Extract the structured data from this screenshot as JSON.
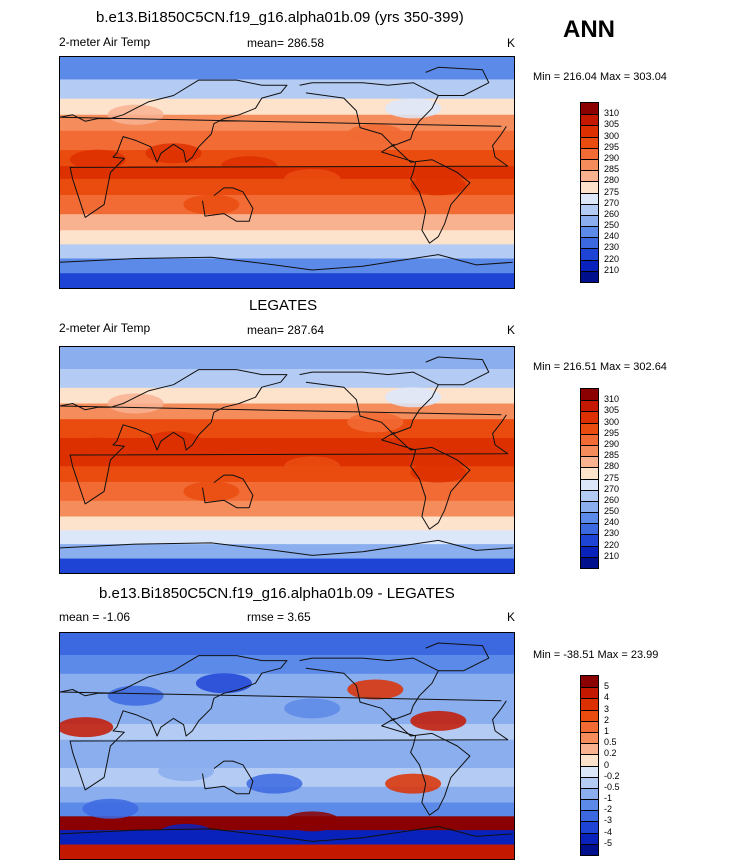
{
  "season": "ANN",
  "panels": [
    {
      "id": "model",
      "title": "b.e13.Bi1850C5CN.f19_g16.alpha01b.09 (yrs 350-399)",
      "left_label": "2-meter Air Temp",
      "center_label": "mean= 286.58",
      "units": "K",
      "minmax": "Min = 216.04 Max = 303.04"
    },
    {
      "id": "obs",
      "title": "LEGATES",
      "left_label": "2-meter Air Temp",
      "center_label": "mean= 287.64",
      "units": "K",
      "minmax": "Min = 216.51 Max = 302.64"
    },
    {
      "id": "diff",
      "title": "b.e13.Bi1850C5CN.f19_g16.alpha01b.09 - LEGATES",
      "left_label": "mean =  -1.06",
      "center_label": "rmse =   3.65",
      "units": "K",
      "minmax": "Min = -38.51 Max =  23.99"
    }
  ],
  "colorbars": {
    "temperature": {
      "labels": [
        "310",
        "305",
        "300",
        "295",
        "290",
        "285",
        "280",
        "275",
        "270",
        "260",
        "250",
        "240",
        "230",
        "220",
        "210"
      ],
      "colors": [
        "#8b0000",
        "#c41800",
        "#dd3000",
        "#ea4c10",
        "#f26a34",
        "#f58c5c",
        "#f8b290",
        "#fde2cc",
        "#dce8fa",
        "#b4ccf4",
        "#8aaeee",
        "#5c8ae8",
        "#3c68e0",
        "#1e44d6",
        "#0a22bc",
        "#000f8c"
      ]
    },
    "difference": {
      "labels": [
        "5",
        "4",
        "3",
        "2",
        "1",
        "0.5",
        "0.2",
        "0",
        "-0.2",
        "-0.5",
        "-1",
        "-2",
        "-3",
        "-4",
        "-5"
      ],
      "colors": [
        "#8b0000",
        "#c41800",
        "#dd3000",
        "#ea4c10",
        "#f26a34",
        "#f58c5c",
        "#f8b290",
        "#fde2cc",
        "#dce8fa",
        "#b4ccf4",
        "#8aaeee",
        "#5c8ae8",
        "#3c68e0",
        "#1e44d6",
        "#0a22bc",
        "#000f8c"
      ]
    }
  },
  "chart_data": [
    {
      "type": "heatmap",
      "title": "b.e13.Bi1850C5CN.f19_g16.alpha01b.09 (yrs 350-399)",
      "variable": "2-meter Air Temp",
      "units": "K",
      "mean": 286.58,
      "min": 216.04,
      "max": 303.04,
      "contour_levels": [
        210,
        220,
        230,
        240,
        250,
        260,
        270,
        275,
        280,
        285,
        290,
        295,
        300,
        305,
        310
      ],
      "zonal_bands_north_to_south": [
        {
          "lat": 80,
          "value": 248
        },
        {
          "lat": 65,
          "value": 262
        },
        {
          "lat": 50,
          "value": 276
        },
        {
          "lat": 40,
          "value": 285
        },
        {
          "lat": 25,
          "value": 294
        },
        {
          "lat": 10,
          "value": 299
        },
        {
          "lat": 0,
          "value": 300
        },
        {
          "lat": -10,
          "value": 298
        },
        {
          "lat": -25,
          "value": 293
        },
        {
          "lat": -40,
          "value": 284
        },
        {
          "lat": -50,
          "value": 277
        },
        {
          "lat": -62,
          "value": 266
        },
        {
          "lat": -72,
          "value": 245
        },
        {
          "lat": -85,
          "value": 225
        }
      ]
    },
    {
      "type": "heatmap",
      "title": "LEGATES",
      "variable": "2-meter Air Temp",
      "units": "K",
      "mean": 287.64,
      "min": 216.51,
      "max": 302.64,
      "contour_levels": [
        210,
        220,
        230,
        240,
        250,
        260,
        270,
        275,
        280,
        285,
        290,
        295,
        300,
        305,
        310
      ],
      "zonal_bands_north_to_south": [
        {
          "lat": 80,
          "value": 252
        },
        {
          "lat": 65,
          "value": 264
        },
        {
          "lat": 50,
          "value": 277
        },
        {
          "lat": 40,
          "value": 286
        },
        {
          "lat": 25,
          "value": 295
        },
        {
          "lat": 10,
          "value": 300
        },
        {
          "lat": 0,
          "value": 301
        },
        {
          "lat": -10,
          "value": 299
        },
        {
          "lat": -25,
          "value": 294
        },
        {
          "lat": -40,
          "value": 286
        },
        {
          "lat": -50,
          "value": 278
        },
        {
          "lat": -62,
          "value": 270
        },
        {
          "lat": -72,
          "value": 250
        },
        {
          "lat": -85,
          "value": 228
        }
      ]
    },
    {
      "type": "heatmap",
      "title": "b.e13.Bi1850C5CN.f19_g16.alpha01b.09 - LEGATES",
      "variable": "2-meter Air Temp difference",
      "units": "K",
      "mean": -1.06,
      "rmse": 3.65,
      "min": -38.51,
      "max": 23.99,
      "contour_levels": [
        -5,
        -4,
        -3,
        -2,
        -1,
        -0.5,
        -0.2,
        0,
        0.2,
        0.5,
        1,
        2,
        3,
        4,
        5
      ],
      "zonal_bands_north_to_south": [
        {
          "lat": 80,
          "value": -3
        },
        {
          "lat": 65,
          "value": -1.5
        },
        {
          "lat": 50,
          "value": -1
        },
        {
          "lat": 40,
          "value": -0.8
        },
        {
          "lat": 25,
          "value": -0.6
        },
        {
          "lat": 10,
          "value": -0.4
        },
        {
          "lat": 0,
          "value": -0.6
        },
        {
          "lat": -10,
          "value": -0.8
        },
        {
          "lat": -25,
          "value": -0.5
        },
        {
          "lat": -40,
          "value": -1
        },
        {
          "lat": -50,
          "value": -2
        },
        {
          "lat": -62,
          "value": 5
        },
        {
          "lat": -72,
          "value": -5
        },
        {
          "lat": -85,
          "value": 4
        }
      ]
    }
  ]
}
